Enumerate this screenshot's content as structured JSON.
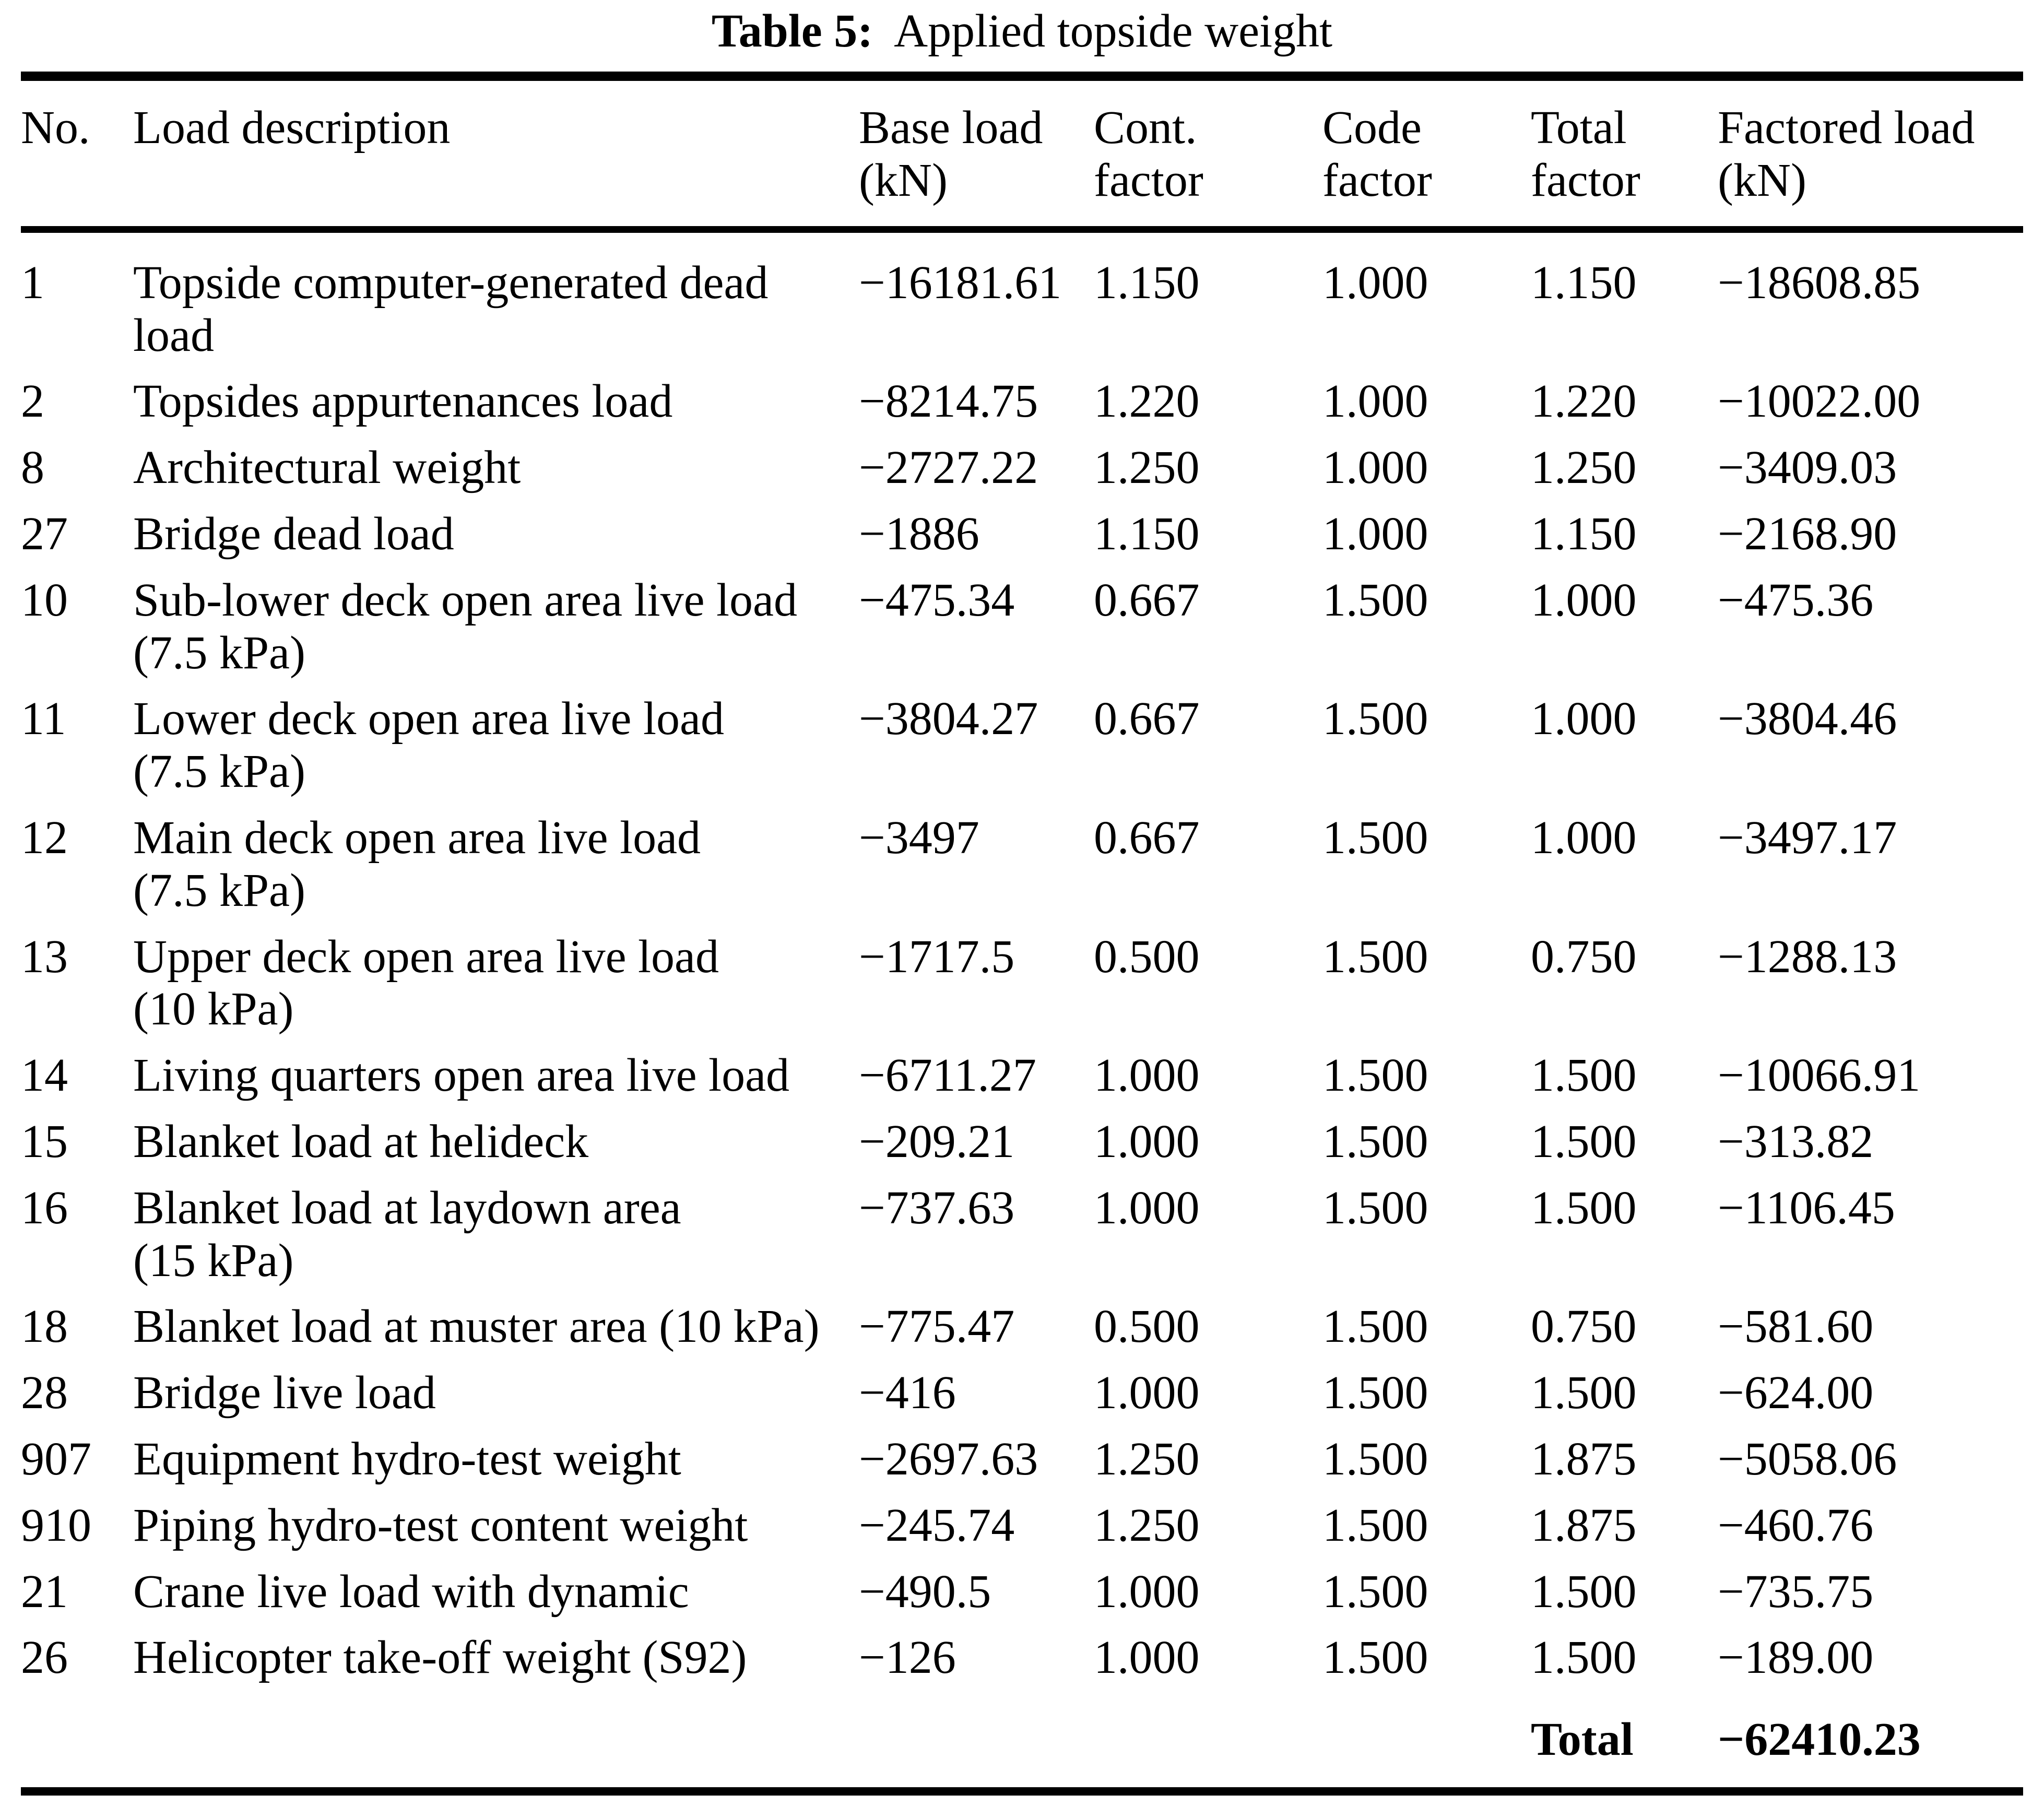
{
  "page": {
    "background": "#ffffff",
    "text_color": "#000000"
  },
  "caption": {
    "label": "Table 5:",
    "text": "Applied topside weight"
  },
  "table": {
    "headers": [
      {
        "line1": "No.",
        "line2": ""
      },
      {
        "line1": "Load description",
        "line2": ""
      },
      {
        "line1": "Base load",
        "line2": "(kN)"
      },
      {
        "line1": "Cont.",
        "line2": "factor"
      },
      {
        "line1": "Code",
        "line2": "factor"
      },
      {
        "line1": "Total",
        "line2": "factor"
      },
      {
        "line1": "Factored load",
        "line2": "(kN)"
      }
    ],
    "rows": [
      {
        "no": "1",
        "description": "Topside computer-generated dead\nload",
        "base_load": "−16181.61",
        "cont_factor": "1.150",
        "code_factor": "1.000",
        "total_factor": "1.150",
        "factored_load": "−18608.85"
      },
      {
        "no": "2",
        "description": "Topsides appurtenances load",
        "base_load": "−8214.75",
        "cont_factor": "1.220",
        "code_factor": "1.000",
        "total_factor": "1.220",
        "factored_load": "−10022.00"
      },
      {
        "no": "8",
        "description": "Architectural weight",
        "base_load": "−2727.22",
        "cont_factor": "1.250",
        "code_factor": "1.000",
        "total_factor": "1.250",
        "factored_load": "−3409.03"
      },
      {
        "no": "27",
        "description": "Bridge dead load",
        "base_load": "−1886",
        "cont_factor": "1.150",
        "code_factor": "1.000",
        "total_factor": "1.150",
        "factored_load": "−2168.90"
      },
      {
        "no": "10",
        "description": "Sub-lower deck open area live load\n(7.5 kPa)",
        "base_load": "−475.34",
        "cont_factor": "0.667",
        "code_factor": "1.500",
        "total_factor": "1.000",
        "factored_load": "−475.36"
      },
      {
        "no": "11",
        "description": "Lower deck open area live load\n(7.5 kPa)",
        "base_load": "−3804.27",
        "cont_factor": "0.667",
        "code_factor": "1.500",
        "total_factor": "1.000",
        "factored_load": "−3804.46"
      },
      {
        "no": "12",
        "description": "Main deck open area live load\n(7.5 kPa)",
        "base_load": "−3497",
        "cont_factor": "0.667",
        "code_factor": "1.500",
        "total_factor": "1.000",
        "factored_load": "−3497.17"
      },
      {
        "no": "13",
        "description": "Upper deck open area live load\n(10 kPa)",
        "base_load": "−1717.5",
        "cont_factor": "0.500",
        "code_factor": "1.500",
        "total_factor": "0.750",
        "factored_load": "−1288.13"
      },
      {
        "no": "14",
        "description": "Living quarters open area live load",
        "base_load": "−6711.27",
        "cont_factor": "1.000",
        "code_factor": "1.500",
        "total_factor": "1.500",
        "factored_load": "−10066.91"
      },
      {
        "no": "15",
        "description": "Blanket load at helideck",
        "base_load": "−209.21",
        "cont_factor": "1.000",
        "code_factor": "1.500",
        "total_factor": "1.500",
        "factored_load": "−313.82"
      },
      {
        "no": "16",
        "description": "Blanket load at laydown area\n(15 kPa)",
        "base_load": "−737.63",
        "cont_factor": "1.000",
        "code_factor": "1.500",
        "total_factor": "1.500",
        "factored_load": "−1106.45"
      },
      {
        "no": "18",
        "description": "Blanket load at muster area (10 kPa)",
        "base_load": "−775.47",
        "cont_factor": "0.500",
        "code_factor": "1.500",
        "total_factor": "0.750",
        "factored_load": "−581.60"
      },
      {
        "no": "28",
        "description": "Bridge live load",
        "base_load": "−416",
        "cont_factor": "1.000",
        "code_factor": "1.500",
        "total_factor": "1.500",
        "factored_load": "−624.00"
      },
      {
        "no": "907",
        "description": "Equipment hydro-test weight",
        "base_load": "−2697.63",
        "cont_factor": "1.250",
        "code_factor": "1.500",
        "total_factor": "1.875",
        "factored_load": "−5058.06"
      },
      {
        "no": "910",
        "description": "Piping hydro-test content weight",
        "base_load": "−245.74",
        "cont_factor": "1.250",
        "code_factor": "1.500",
        "total_factor": "1.875",
        "factored_load": "−460.76"
      },
      {
        "no": "21",
        "description": "Crane live load with dynamic",
        "base_load": "−490.5",
        "cont_factor": "1.000",
        "code_factor": "1.500",
        "total_factor": "1.500",
        "factored_load": "−735.75"
      },
      {
        "no": "26",
        "description": "Helicopter take-off weight (S92)",
        "base_load": "−126",
        "cont_factor": "1.000",
        "code_factor": "1.500",
        "total_factor": "1.500",
        "factored_load": "−189.00"
      }
    ],
    "total": {
      "label": "Total",
      "value": "−62410.23"
    }
  }
}
